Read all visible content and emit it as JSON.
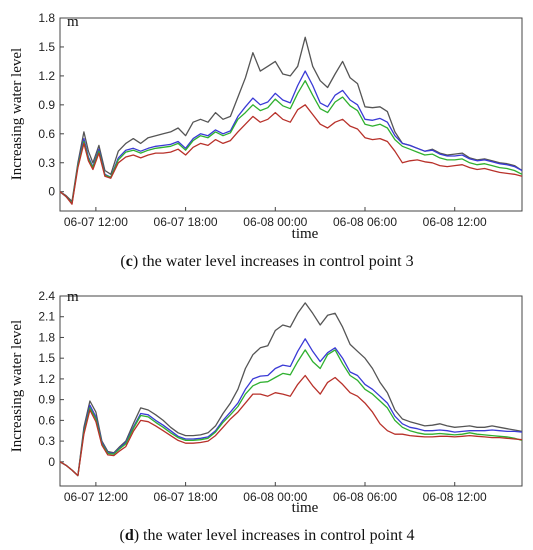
{
  "chart_data": [
    {
      "type": "line",
      "caption": {
        "letter": "c",
        "text": " the water level increases in control point 3"
      },
      "unit": "m",
      "xlabel": "time",
      "ylabel": "Increasing water level",
      "ylim": [
        -0.2,
        1.8
      ],
      "yticks": [
        0,
        0.3,
        0.6,
        0.9,
        1.2,
        1.5,
        1.8
      ],
      "ytick_labels": [
        "0",
        "0.3",
        "0.6",
        "0.9",
        "1.2",
        "1.5",
        "1.8"
      ],
      "xlim": [
        -2.4,
        28.5
      ],
      "xticks": [
        0,
        6,
        12,
        18,
        24
      ],
      "xtick_labels": [
        "06-07 12:00",
        "06-07 18:00",
        "06-08 00:00",
        "06-08 06:00",
        "06-08 12:00"
      ],
      "x": [
        -2.4,
        -2.0,
        -1.6,
        -1.2,
        -0.8,
        -0.5,
        -0.2,
        0.2,
        0.6,
        1.0,
        1.5,
        2.0,
        2.5,
        3.0,
        3.5,
        4.0,
        4.5,
        5.0,
        5.5,
        6.0,
        6.5,
        7.0,
        7.5,
        8.0,
        8.5,
        9.0,
        9.5,
        10.0,
        10.5,
        11.0,
        11.5,
        12.0,
        12.5,
        13.0,
        13.5,
        14.0,
        14.5,
        15.0,
        15.5,
        16.0,
        16.5,
        17.0,
        17.5,
        18.0,
        18.5,
        19.0,
        19.5,
        20.0,
        20.5,
        21.0,
        21.5,
        22.0,
        22.5,
        23.0,
        23.5,
        24.0,
        24.5,
        25.0,
        25.5,
        26.0,
        26.5,
        27.0,
        27.5,
        28.0,
        28.5
      ],
      "series": [
        {
          "color": "#555555",
          "values": [
            0,
            -0.04,
            -0.1,
            0.3,
            0.62,
            0.42,
            0.3,
            0.48,
            0.22,
            0.18,
            0.42,
            0.5,
            0.55,
            0.5,
            0.56,
            0.58,
            0.6,
            0.62,
            0.66,
            0.58,
            0.72,
            0.75,
            0.72,
            0.82,
            0.75,
            0.78,
            0.98,
            1.18,
            1.44,
            1.25,
            1.3,
            1.35,
            1.22,
            1.2,
            1.3,
            1.6,
            1.3,
            1.15,
            1.08,
            1.22,
            1.35,
            1.18,
            1.12,
            0.88,
            0.87,
            0.88,
            0.83,
            0.62,
            0.5,
            0.48,
            0.45,
            0.42,
            0.44,
            0.4,
            0.38,
            0.39,
            0.4,
            0.35,
            0.33,
            0.34,
            0.32,
            0.3,
            0.29,
            0.27,
            0.22
          ]
        },
        {
          "color": "#3a3ad6",
          "values": [
            0,
            -0.05,
            -0.12,
            0.28,
            0.55,
            0.36,
            0.26,
            0.44,
            0.18,
            0.15,
            0.35,
            0.43,
            0.45,
            0.42,
            0.45,
            0.47,
            0.48,
            0.49,
            0.52,
            0.45,
            0.55,
            0.6,
            0.58,
            0.64,
            0.6,
            0.63,
            0.78,
            0.88,
            0.97,
            0.9,
            0.93,
            1.02,
            0.95,
            0.92,
            1.1,
            1.25,
            1.1,
            0.92,
            0.88,
            1.0,
            1.05,
            0.95,
            0.9,
            0.75,
            0.74,
            0.76,
            0.72,
            0.58,
            0.5,
            0.48,
            0.45,
            0.42,
            0.43,
            0.39,
            0.37,
            0.37,
            0.38,
            0.34,
            0.32,
            0.33,
            0.31,
            0.29,
            0.28,
            0.26,
            0.22
          ]
        },
        {
          "color": "#2fb02f",
          "values": [
            0,
            -0.05,
            -0.12,
            0.27,
            0.52,
            0.34,
            0.25,
            0.42,
            0.17,
            0.15,
            0.33,
            0.41,
            0.43,
            0.4,
            0.43,
            0.45,
            0.46,
            0.47,
            0.5,
            0.43,
            0.53,
            0.58,
            0.56,
            0.62,
            0.58,
            0.61,
            0.75,
            0.82,
            0.9,
            0.84,
            0.87,
            0.96,
            0.89,
            0.86,
            1.02,
            1.15,
            1.0,
            0.86,
            0.82,
            0.93,
            0.98,
            0.89,
            0.84,
            0.7,
            0.68,
            0.7,
            0.66,
            0.54,
            0.47,
            0.44,
            0.41,
            0.38,
            0.39,
            0.35,
            0.33,
            0.33,
            0.34,
            0.3,
            0.28,
            0.29,
            0.27,
            0.25,
            0.24,
            0.22,
            0.18
          ]
        },
        {
          "color": "#b8312a",
          "values": [
            0,
            -0.05,
            -0.13,
            0.25,
            0.5,
            0.32,
            0.23,
            0.4,
            0.16,
            0.14,
            0.3,
            0.36,
            0.38,
            0.35,
            0.38,
            0.4,
            0.4,
            0.41,
            0.44,
            0.38,
            0.46,
            0.5,
            0.48,
            0.54,
            0.5,
            0.53,
            0.62,
            0.7,
            0.78,
            0.72,
            0.75,
            0.82,
            0.75,
            0.72,
            0.85,
            0.9,
            0.8,
            0.7,
            0.66,
            0.72,
            0.75,
            0.68,
            0.65,
            0.56,
            0.54,
            0.55,
            0.52,
            0.42,
            0.3,
            0.32,
            0.33,
            0.31,
            0.3,
            0.27,
            0.26,
            0.27,
            0.28,
            0.25,
            0.23,
            0.24,
            0.22,
            0.2,
            0.19,
            0.18,
            0.16
          ]
        }
      ]
    },
    {
      "type": "line",
      "caption": {
        "letter": "d",
        "text": " the water level increases in control point 4"
      },
      "unit": "m",
      "xlabel": "time",
      "ylabel": "Increasing water level",
      "ylim": [
        -0.35,
        2.4
      ],
      "yticks": [
        0,
        0.3,
        0.6,
        0.9,
        1.2,
        1.5,
        1.8,
        2.1,
        2.4
      ],
      "ytick_labels": [
        "0",
        "0.3",
        "0.6",
        "0.9",
        "1.2",
        "1.5",
        "1.8",
        "2.1",
        "2.4"
      ],
      "xlim": [
        -2.4,
        28.5
      ],
      "xticks": [
        0,
        6,
        12,
        18,
        24
      ],
      "xtick_labels": [
        "06-07 12:00",
        "06-07 18:00",
        "06-08 00:00",
        "06-08 06:00",
        "06-08 12:00"
      ],
      "x": [
        -2.4,
        -2.0,
        -1.6,
        -1.2,
        -0.8,
        -0.4,
        0.0,
        0.4,
        0.8,
        1.2,
        1.6,
        2.0,
        2.5,
        3.0,
        3.5,
        4.0,
        4.5,
        5.0,
        5.5,
        6.0,
        6.5,
        7.0,
        7.5,
        8.0,
        8.5,
        9.0,
        9.5,
        10.0,
        10.5,
        11.0,
        11.5,
        12.0,
        12.5,
        13.0,
        13.5,
        14.0,
        14.5,
        15.0,
        15.5,
        16.0,
        16.5,
        17.0,
        17.5,
        18.0,
        18.5,
        19.0,
        19.5,
        20.0,
        20.5,
        21.0,
        21.5,
        22.0,
        22.5,
        23.0,
        23.5,
        24.0,
        24.5,
        25.0,
        25.5,
        26.0,
        26.5,
        27.0,
        27.5,
        28.0,
        28.5
      ],
      "series": [
        {
          "color": "#555555",
          "values": [
            0,
            -0.05,
            -0.12,
            -0.2,
            0.5,
            0.88,
            0.72,
            0.3,
            0.15,
            0.13,
            0.22,
            0.3,
            0.55,
            0.78,
            0.75,
            0.68,
            0.6,
            0.5,
            0.42,
            0.38,
            0.38,
            0.39,
            0.42,
            0.52,
            0.7,
            0.85,
            1.05,
            1.35,
            1.55,
            1.65,
            1.68,
            1.9,
            1.98,
            1.95,
            2.15,
            2.3,
            2.15,
            1.98,
            2.12,
            2.15,
            1.95,
            1.7,
            1.6,
            1.5,
            1.35,
            1.15,
            1.0,
            0.75,
            0.62,
            0.58,
            0.55,
            0.52,
            0.53,
            0.55,
            0.52,
            0.5,
            0.51,
            0.52,
            0.5,
            0.5,
            0.52,
            0.5,
            0.48,
            0.46,
            0.44
          ]
        },
        {
          "color": "#3a3ad6",
          "values": [
            0,
            -0.05,
            -0.12,
            -0.2,
            0.45,
            0.82,
            0.65,
            0.28,
            0.13,
            0.12,
            0.2,
            0.28,
            0.5,
            0.7,
            0.68,
            0.6,
            0.53,
            0.45,
            0.37,
            0.33,
            0.33,
            0.34,
            0.36,
            0.45,
            0.6,
            0.72,
            0.85,
            1.05,
            1.2,
            1.24,
            1.25,
            1.35,
            1.4,
            1.38,
            1.6,
            1.78,
            1.6,
            1.45,
            1.58,
            1.65,
            1.5,
            1.3,
            1.25,
            1.12,
            1.05,
            0.95,
            0.85,
            0.66,
            0.55,
            0.5,
            0.48,
            0.45,
            0.45,
            0.46,
            0.45,
            0.43,
            0.44,
            0.45,
            0.45,
            0.45,
            0.46,
            0.45,
            0.44,
            0.44,
            0.43
          ]
        },
        {
          "color": "#2fb02f",
          "values": [
            0,
            -0.05,
            -0.12,
            -0.2,
            0.43,
            0.78,
            0.62,
            0.26,
            0.12,
            0.11,
            0.19,
            0.26,
            0.48,
            0.67,
            0.65,
            0.57,
            0.5,
            0.42,
            0.35,
            0.31,
            0.31,
            0.32,
            0.34,
            0.43,
            0.57,
            0.68,
            0.8,
            0.98,
            1.1,
            1.15,
            1.16,
            1.22,
            1.28,
            1.26,
            1.45,
            1.62,
            1.45,
            1.35,
            1.55,
            1.62,
            1.42,
            1.25,
            1.18,
            1.05,
            0.98,
            0.88,
            0.78,
            0.6,
            0.5,
            0.45,
            0.42,
            0.4,
            0.4,
            0.41,
            0.4,
            0.39,
            0.4,
            0.42,
            0.4,
            0.39,
            0.38,
            0.37,
            0.36,
            0.34,
            0.31
          ]
        },
        {
          "color": "#b8312a",
          "values": [
            0,
            -0.05,
            -0.12,
            -0.2,
            0.4,
            0.75,
            0.58,
            0.24,
            0.1,
            0.09,
            0.16,
            0.22,
            0.44,
            0.6,
            0.58,
            0.52,
            0.45,
            0.38,
            0.31,
            0.27,
            0.27,
            0.28,
            0.3,
            0.38,
            0.5,
            0.62,
            0.72,
            0.85,
            0.98,
            0.98,
            0.95,
            1.0,
            0.98,
            0.95,
            1.12,
            1.25,
            1.1,
            0.98,
            1.15,
            1.22,
            1.12,
            1.0,
            0.95,
            0.85,
            0.72,
            0.55,
            0.45,
            0.4,
            0.4,
            0.38,
            0.37,
            0.36,
            0.36,
            0.37,
            0.37,
            0.36,
            0.37,
            0.38,
            0.37,
            0.36,
            0.35,
            0.35,
            0.34,
            0.33,
            0.32
          ]
        }
      ]
    }
  ]
}
